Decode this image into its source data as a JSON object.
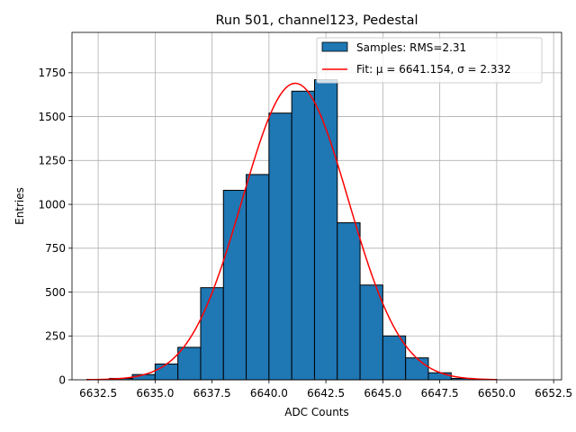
{
  "chart_data": {
    "type": "bar",
    "title": "Run 501, channel123, Pedestal",
    "xlabel": "ADC Counts",
    "ylabel": "Entries",
    "xlim": [
      6631.35,
      6652.85
    ],
    "ylim": [
      0,
      1980
    ],
    "xticks": [
      6632.5,
      6635.0,
      6637.5,
      6640.0,
      6642.5,
      6645.0,
      6647.5,
      6650.0,
      6652.5
    ],
    "xtick_labels": [
      "6632.5",
      "6635.0",
      "6637.5",
      "6640.0",
      "6642.5",
      "6645.0",
      "6647.5",
      "6650.0",
      "6652.5"
    ],
    "yticks": [
      0,
      250,
      500,
      750,
      1000,
      1250,
      1500,
      1750
    ],
    "ytick_labels": [
      "0",
      "250",
      "500",
      "750",
      "1000",
      "1250",
      "1500",
      "1750"
    ],
    "grid": true,
    "legend_position": "top-right",
    "bin_width": 1.0,
    "series": [
      {
        "name": "Samples: RMS=2.31",
        "kind": "histogram",
        "color": "#1f77b4",
        "bins": [
          {
            "left": 6632,
            "value": 2
          },
          {
            "left": 6633,
            "value": 8
          },
          {
            "left": 6634,
            "value": 30
          },
          {
            "left": 6635,
            "value": 90
          },
          {
            "left": 6636,
            "value": 185
          },
          {
            "left": 6637,
            "value": 525
          },
          {
            "left": 6638,
            "value": 1080
          },
          {
            "left": 6639,
            "value": 1170
          },
          {
            "left": 6640,
            "value": 1520
          },
          {
            "left": 6641,
            "value": 1645
          },
          {
            "left": 6642,
            "value": 1710
          },
          {
            "left": 6643,
            "value": 895
          },
          {
            "left": 6644,
            "value": 540
          },
          {
            "left": 6645,
            "value": 250
          },
          {
            "left": 6646,
            "value": 125
          },
          {
            "left": 6647,
            "value": 40
          },
          {
            "left": 6648,
            "value": 8
          },
          {
            "left": 6649,
            "value": 2
          }
        ]
      },
      {
        "name": "Fit: μ = 6641.154, σ = 2.332",
        "kind": "gaussian-fit",
        "color": "#ff0000",
        "mu": 6641.154,
        "sigma": 2.332,
        "amplitude": 1690,
        "x_range": [
          6632.0,
          6650.0
        ]
      }
    ]
  }
}
